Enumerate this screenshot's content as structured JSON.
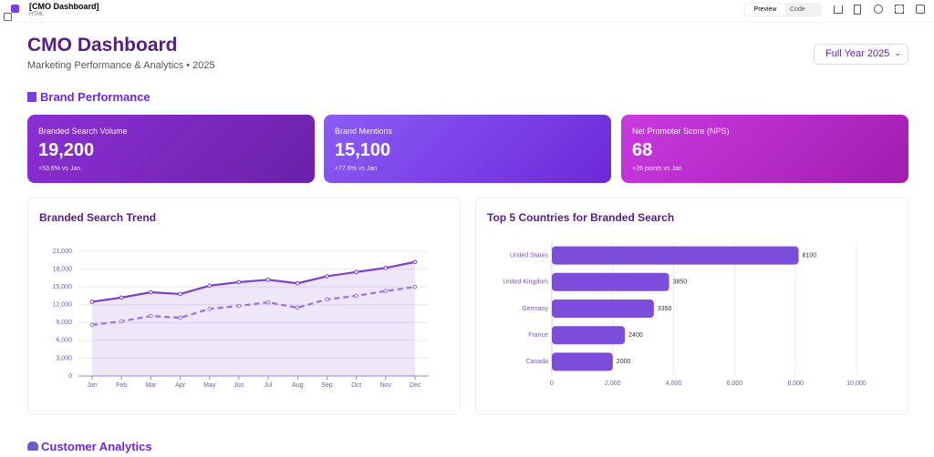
{
  "app": {
    "title": "[CMO Dashboard]",
    "subtitle": "HTML",
    "preview": "Preview",
    "code": "Code"
  },
  "header": {
    "title": "CMO Dashboard",
    "subtitle": "Marketing Performance & Analytics • 2025",
    "period": "Full Year 2025"
  },
  "sections": [
    "Brand Performance",
    "Customer Analytics"
  ],
  "kpis": [
    {
      "label": "Branded Search Volume",
      "value": "19,200",
      "change": "+53.6% vs Jan"
    },
    {
      "label": "Brand Mentions",
      "value": "15,100",
      "change": "+77.6% vs Jan"
    },
    {
      "label": "Net Promoter Score (NPS)",
      "value": "68",
      "change": "+26 points vs Jan"
    }
  ],
  "chart_data": [
    {
      "type": "line",
      "title": "Branded Search Trend",
      "categories": [
        "Jan",
        "Feb",
        "Mar",
        "Apr",
        "May",
        "Jun",
        "Jul",
        "Aug",
        "Sep",
        "Oct",
        "Nov",
        "Dec"
      ],
      "series": [
        {
          "color": "#7e3fd0",
          "fill": true,
          "dashed": false,
          "values": [
            12500,
            13200,
            14100,
            13800,
            15200,
            15800,
            16200,
            15600,
            16800,
            17500,
            18200,
            19200
          ]
        },
        {
          "color": "#9b6fe0",
          "fill": false,
          "dashed": true,
          "values": [
            8600,
            9200,
            10100,
            9800,
            11300,
            11800,
            12400,
            11500,
            12900,
            13500,
            14300,
            15000
          ]
        }
      ],
      "ylim": [
        0,
        21000
      ],
      "yticks": [
        0,
        {
          "value": 3000,
          "label": "3,000"
        },
        {
          "value": 6000,
          "label": "6,000"
        },
        {
          "value": 9000,
          "label": "9,000"
        },
        {
          "value": 12000,
          "label": "12,000"
        },
        {
          "value": 15000,
          "label": "15,000"
        },
        {
          "value": 18000,
          "label": "18,000"
        },
        {
          "value": 21000,
          "label": "21,000"
        }
      ],
      "grid": true
    },
    {
      "type": "hbar",
      "title": "Top 5 Countries for Branded Search",
      "categories": [
        "United States",
        "United Kingdom",
        "Germany",
        "France",
        "Canada"
      ],
      "values": [
        8100,
        3850,
        3350,
        2400,
        2000
      ],
      "color": "#7c4ddb",
      "xlim": [
        0,
        10000
      ],
      "xticks": [
        0,
        {
          "value": 2000,
          "label": "2,000"
        },
        {
          "value": 4000,
          "label": "4,000"
        },
        {
          "value": 6000,
          "label": "6,000"
        },
        {
          "value": 8000,
          "label": "8,000"
        },
        {
          "value": 10000,
          "label": "10,000"
        }
      ],
      "grid": true
    }
  ]
}
